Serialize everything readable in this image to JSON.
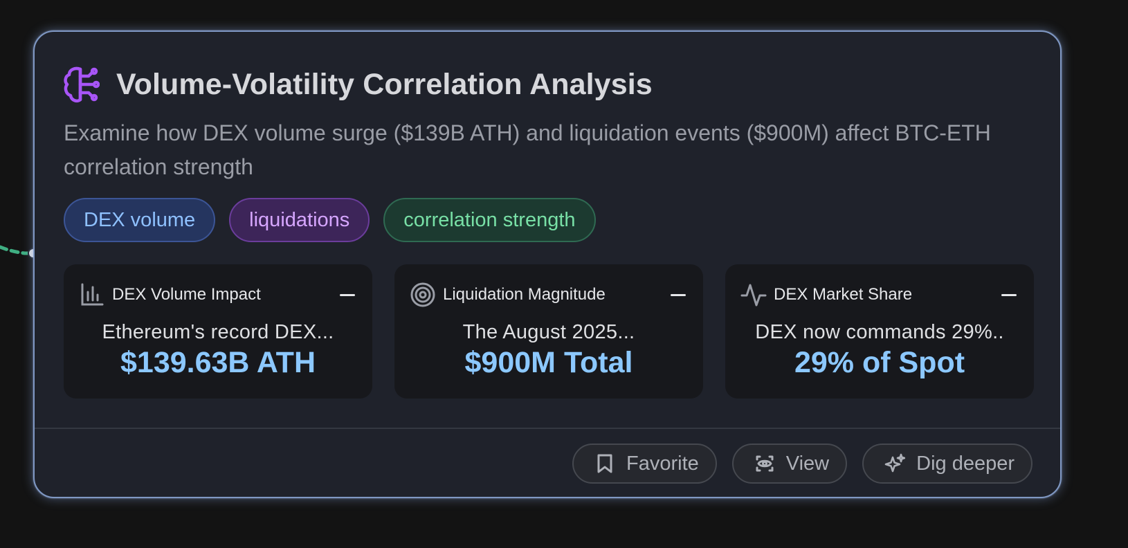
{
  "card": {
    "title": "Volume-Volatility Correlation Analysis",
    "title_icon": "brain-icon",
    "description": "Examine how DEX volume surge ($139B ATH) and liquidation events ($900M) affect BTC-ETH correlation strength",
    "tags": [
      {
        "label": "DEX volume",
        "color": "#8fc1ff"
      },
      {
        "label": "liquidations",
        "color": "#d6a6ff"
      },
      {
        "label": "correlation strength",
        "color": "#78e0a6"
      }
    ],
    "metrics": [
      {
        "icon": "bar-chart-icon",
        "label": "DEX Volume Impact",
        "summary": "Ethereum's record DEX...",
        "value": "$139.63B ATH"
      },
      {
        "icon": "target-icon",
        "label": "Liquidation Magnitude",
        "summary": "The August 2025...",
        "value": "$900M Total"
      },
      {
        "icon": "activity-icon",
        "label": "DEX Market Share",
        "summary": "DEX now commands 29%..",
        "value": "29% of Spot"
      }
    ],
    "actions": [
      {
        "icon": "bookmark-icon",
        "label": "Favorite"
      },
      {
        "icon": "view-icon",
        "label": "View"
      },
      {
        "icon": "sparkles-icon",
        "label": "Dig deeper"
      }
    ]
  },
  "colors": {
    "accent_purple": "#a855f7",
    "value_blue": "#8cc8ff",
    "card_border": "#7f98c4",
    "connector_green": "#3fae82"
  }
}
